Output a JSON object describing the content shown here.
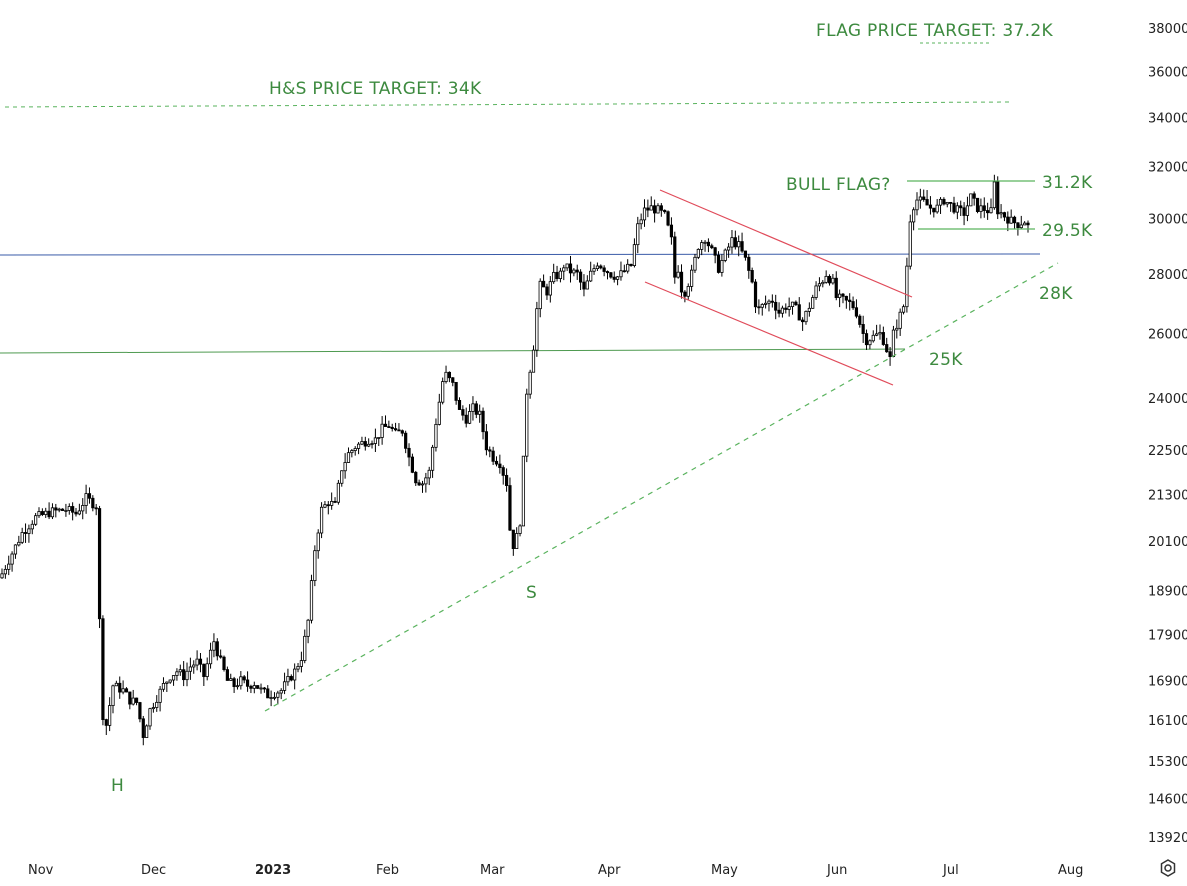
{
  "chart_data": {
    "type": "candlestick",
    "price_scale": "log",
    "ylim": [
      13500,
      39500
    ],
    "y_ticks": [
      38000,
      36000,
      34000,
      32000,
      30000,
      28000,
      26000,
      24000,
      22500,
      21300,
      20100,
      18900,
      17900,
      16900,
      16100,
      15300,
      14600,
      13920
    ],
    "y_tick_labels": [
      "38000",
      "36000",
      "34000",
      "32000",
      "30000",
      "28000",
      "26000",
      "24000",
      "22500",
      "21300",
      "20100",
      "18900",
      "17900",
      "16900",
      "16100",
      "15300",
      "14600",
      "13920"
    ],
    "x_tick_labels": [
      "Nov",
      "Dec",
      "2023",
      "Feb",
      "Mar",
      "Apr",
      "May",
      "Jun",
      "Jul",
      "Aug"
    ],
    "grid": false,
    "close_path": [
      [
        0,
        19300
      ],
      [
        3,
        19800
      ],
      [
        6,
        20300
      ],
      [
        10,
        20700
      ],
      [
        15,
        20850
      ],
      [
        19,
        20900
      ],
      [
        22,
        20800
      ],
      [
        25,
        21200
      ],
      [
        28,
        21000
      ],
      [
        29,
        18200
      ],
      [
        30,
        16200
      ],
      [
        31,
        16000
      ],
      [
        33,
        16800
      ],
      [
        36,
        16700
      ],
      [
        38,
        16500
      ],
      [
        40,
        16450
      ],
      [
        42,
        15800
      ],
      [
        44,
        16300
      ],
      [
        46,
        16550
      ],
      [
        48,
        16800
      ],
      [
        50,
        17000
      ],
      [
        52,
        17100
      ],
      [
        54,
        17000
      ],
      [
        56,
        17200
      ],
      [
        58,
        17300
      ],
      [
        60,
        17000
      ],
      [
        62,
        17500
      ],
      [
        63,
        17750
      ],
      [
        65,
        17300
      ],
      [
        67,
        16900
      ],
      [
        69,
        16800
      ],
      [
        71,
        16900
      ],
      [
        73,
        16800
      ],
      [
        75,
        16850
      ],
      [
        77,
        16700
      ],
      [
        79,
        16600
      ],
      [
        81,
        16650
      ],
      [
        83,
        16700
      ],
      [
        85,
        16900
      ],
      [
        87,
        17100
      ],
      [
        89,
        17400
      ],
      [
        91,
        18200
      ],
      [
        93,
        19900
      ],
      [
        95,
        20900
      ],
      [
        97,
        21100
      ],
      [
        99,
        21000
      ],
      [
        101,
        22000
      ],
      [
        103,
        22400
      ],
      [
        105,
        22600
      ],
      [
        107,
        22700
      ],
      [
        109,
        22800
      ],
      [
        111,
        22800
      ],
      [
        113,
        23100
      ],
      [
        115,
        23200
      ],
      [
        117,
        22950
      ],
      [
        119,
        23050
      ],
      [
        121,
        22300
      ],
      [
        123,
        21700
      ],
      [
        125,
        21600
      ],
      [
        127,
        21900
      ],
      [
        129,
        23300
      ],
      [
        131,
        24500
      ],
      [
        132,
        24700
      ],
      [
        134,
        24400
      ],
      [
        136,
        23600
      ],
      [
        138,
        23400
      ],
      [
        140,
        23700
      ],
      [
        142,
        23500
      ],
      [
        144,
        22600
      ],
      [
        146,
        22300
      ],
      [
        148,
        22150
      ],
      [
        150,
        21600
      ],
      [
        151,
        20400
      ],
      [
        152,
        20000
      ],
      [
        153,
        20200
      ],
      [
        154,
        20600
      ],
      [
        155,
        22200
      ],
      [
        156,
        24200
      ],
      [
        157,
        24900
      ],
      [
        158,
        25600
      ],
      [
        159,
        26800
      ],
      [
        160,
        27600
      ],
      [
        162,
        27400
      ],
      [
        164,
        27900
      ],
      [
        166,
        28000
      ],
      [
        167,
        28300
      ],
      [
        169,
        28100
      ],
      [
        171,
        28000
      ],
      [
        173,
        27400
      ],
      [
        175,
        28000
      ],
      [
        177,
        28400
      ],
      [
        179,
        28200
      ],
      [
        181,
        28000
      ],
      [
        183,
        27900
      ],
      [
        185,
        28100
      ],
      [
        187,
        28300
      ],
      [
        189,
        29700
      ],
      [
        191,
        30300
      ],
      [
        193,
        30400
      ],
      [
        195,
        30300
      ],
      [
        197,
        30100
      ],
      [
        199,
        29200
      ],
      [
        200,
        27900
      ],
      [
        201,
        28200
      ],
      [
        202,
        27500
      ],
      [
        203,
        27400
      ],
      [
        205,
        28000
      ],
      [
        207,
        29000
      ],
      [
        209,
        29300
      ],
      [
        211,
        28800
      ],
      [
        213,
        28200
      ],
      [
        215,
        28700
      ],
      [
        217,
        29200
      ],
      [
        219,
        29000
      ],
      [
        221,
        28500
      ],
      [
        223,
        27700
      ],
      [
        224,
        27000
      ],
      [
        225,
        26800
      ],
      [
        227,
        27000
      ],
      [
        229,
        27100
      ],
      [
        231,
        26700
      ],
      [
        233,
        26900
      ],
      [
        235,
        26900
      ],
      [
        236,
        26800
      ],
      [
        238,
        26400
      ],
      [
        240,
        26900
      ],
      [
        242,
        27500
      ],
      [
        244,
        27800
      ],
      [
        245,
        28000
      ],
      [
        247,
        27700
      ],
      [
        248,
        27200
      ],
      [
        250,
        27100
      ],
      [
        252,
        27000
      ],
      [
        253,
        26900
      ],
      [
        254,
        26700
      ],
      [
        256,
        26000
      ],
      [
        257,
        25800
      ],
      [
        259,
        25900
      ],
      [
        261,
        26000
      ],
      [
        262,
        25800
      ],
      [
        264,
        25200
      ],
      [
        265,
        26000
      ],
      [
        266,
        26300
      ],
      [
        267,
        26600
      ],
      [
        268,
        26900
      ],
      [
        269,
        28300
      ],
      [
        270,
        30000
      ],
      [
        271,
        30500
      ],
      [
        272,
        30700
      ],
      [
        274,
        30600
      ],
      [
        276,
        30400
      ],
      [
        278,
        30400
      ],
      [
        280,
        30700
      ],
      [
        282,
        30500
      ],
      [
        284,
        30300
      ],
      [
        286,
        30200
      ],
      [
        288,
        30800
      ],
      [
        290,
        30400
      ],
      [
        292,
        30350
      ],
      [
        294,
        30250
      ],
      [
        295,
        31300
      ],
      [
        296,
        30300
      ],
      [
        298,
        30100
      ],
      [
        300,
        29900
      ],
      [
        302,
        29800
      ],
      [
        304,
        29900
      ],
      [
        305,
        29700
      ]
    ],
    "annotations": [
      {
        "text": "FLAG PRICE TARGET: 37.2K",
        "price": 37200
      },
      {
        "text": "H&S PRICE TARGET: 34K",
        "price": 34000
      },
      {
        "text": "BULL FLAG?",
        "price": 31200
      },
      {
        "text": "31.2K",
        "price": 31200
      },
      {
        "text": "29.5K",
        "price": 29500
      },
      {
        "text": "28K",
        "price": 28000
      },
      {
        "text": "25K",
        "price": 25000
      },
      {
        "text": "S",
        "price": 19500
      },
      {
        "text": "H",
        "price": 15500
      }
    ],
    "colors": {
      "candle": "#000000",
      "annotation": "#3d8a3f",
      "channel": "#e04b5a",
      "blue_level": "#3a5ba8",
      "green_level": "#4e9a50",
      "trendline": "#5ab35e"
    }
  },
  "ui": {
    "settings_icon": "gear-icon"
  }
}
